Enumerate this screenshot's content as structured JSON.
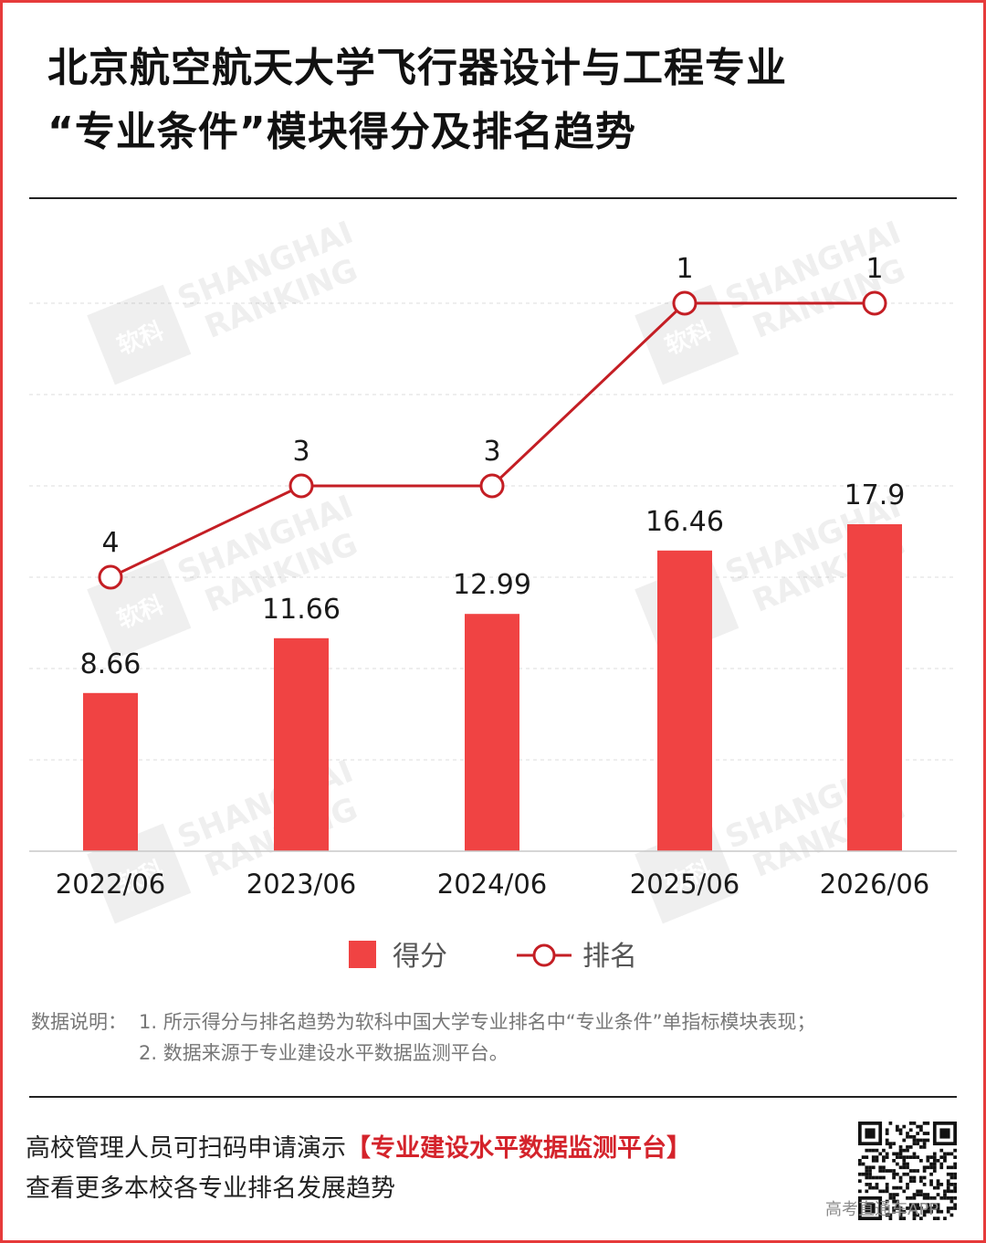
{
  "title_lines": [
    "北京航空航天大学飞行器设计与工程专业",
    "“专业条件”模块得分及排名趋势"
  ],
  "colors": {
    "bar": "#f04343",
    "line": "#c41e24",
    "border": "#e63a3a",
    "highlight": "#d4232b"
  },
  "chart_data": {
    "type": "bar",
    "categories": [
      "2022/06",
      "2023/06",
      "2024/06",
      "2025/06",
      "2026/06"
    ],
    "series": [
      {
        "name": "得分",
        "type": "bar",
        "values": [
          8.66,
          11.66,
          12.99,
          16.46,
          17.9
        ]
      },
      {
        "name": "排名",
        "type": "line",
        "values": [
          4,
          3,
          3,
          1,
          1
        ]
      }
    ],
    "bar_axis_range": [
      0,
      30
    ],
    "rank_axis_range": [
      7,
      1
    ],
    "grid": "horizontal dashed",
    "legend_position": "bottom"
  },
  "watermarks": [
    {
      "line1": "SHANGHAI",
      "line2": "RANKING",
      "seal": "软科"
    }
  ],
  "notes": {
    "label": "数据说明：",
    "items": [
      "1. 所示得分与排名趋势为软科中国大学专业排名中“专业条件”单指标模块表现；",
      "2. 数据来源于专业建设水平数据监测平台。"
    ]
  },
  "cta": {
    "line1_prefix": "高校管理人员可扫码申请演示",
    "line1_highlight": "【专业建设水平数据监测平台】",
    "line2": "查看更多本校各专业排名发展趋势"
  },
  "footer_watermark": "高考直通车APP"
}
